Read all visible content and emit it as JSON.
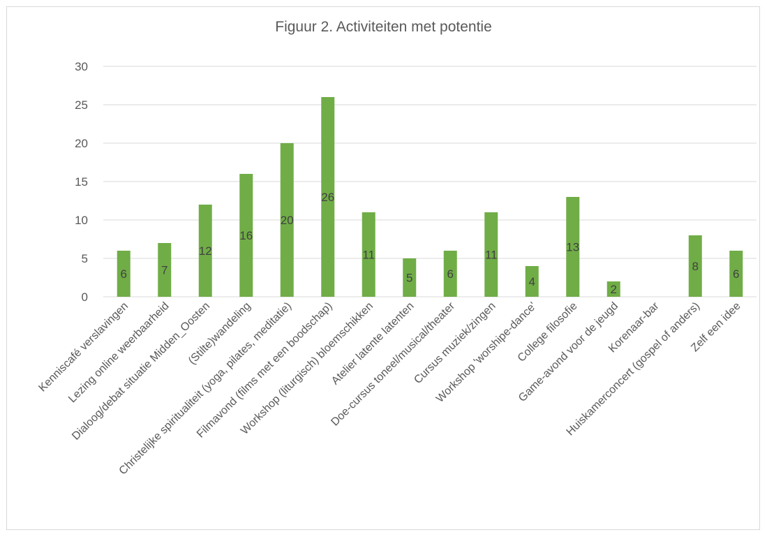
{
  "chart_data": {
    "type": "bar",
    "title": "Figuur 2. Activiteiten met potentie",
    "xlabel": "",
    "ylabel": "",
    "ylim": [
      0,
      30
    ],
    "yticks": [
      0,
      5,
      10,
      15,
      20,
      25,
      30
    ],
    "grid": true,
    "legend": "none",
    "bar_color": "#70ad47",
    "categories": [
      "Kenniscafé verslavingen",
      "Lezing online weerbaarheid",
      "Dialoog/debat situatie Midden_Oosten",
      "(Stilte)wandeling",
      "Christelijke spiritualiteit (yoga, pilates, meditatie)",
      "Filmavond (films met een boodschap)",
      "Workshop (liturgisch) bloemschikken",
      "Atelier latente latenten",
      "Doe-cursus toneel/musical/theater",
      "Cursus muziek/zingen",
      "Workshop 'worshipe-dance'",
      "College filosofie",
      "Game-avond voor de jeugd",
      "Korenaar-bar",
      "Huiskamerconcert (gospel of anders)",
      "Zelf een idee"
    ],
    "values": [
      6,
      7,
      12,
      16,
      20,
      26,
      11,
      5,
      6,
      11,
      4,
      13,
      2,
      null,
      8,
      6
    ],
    "data_labels": [
      "6",
      "7",
      "12",
      "16",
      "20",
      "26",
      "11",
      "5",
      "6",
      "11",
      "4",
      "13",
      "2",
      "",
      "8",
      "6"
    ]
  }
}
